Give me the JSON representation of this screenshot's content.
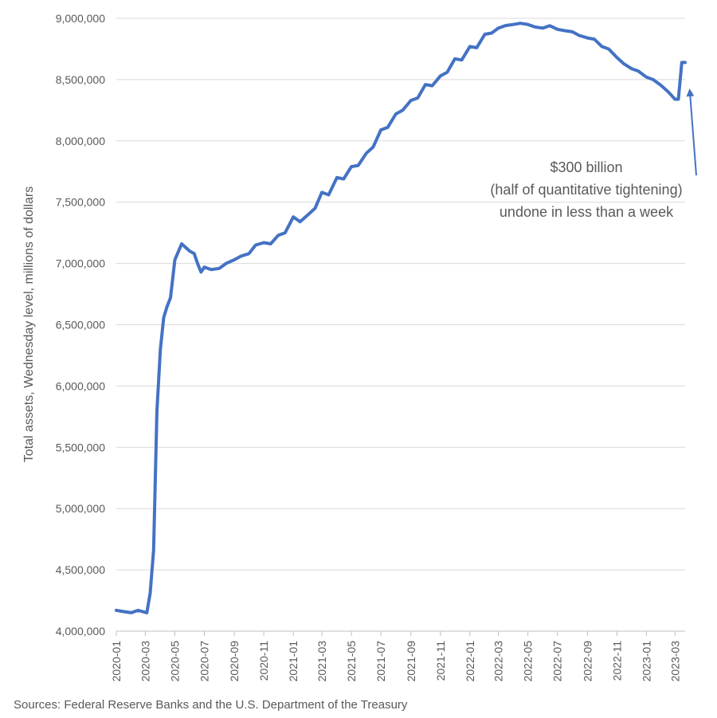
{
  "chart_data": {
    "type": "line",
    "title": "",
    "xlabel": "",
    "ylabel": "Total assets, Wednesday level, millions of dollars",
    "ylim": [
      4000000,
      9000000
    ],
    "y_ticks": [
      4000000,
      4500000,
      5000000,
      5500000,
      6000000,
      6500000,
      7000000,
      7500000,
      8000000,
      8500000,
      9000000
    ],
    "y_tick_labels": [
      "4,000,000",
      "4,500,000",
      "5,000,000",
      "5,500,000",
      "6,000,000",
      "6,500,000",
      "7,000,000",
      "7,500,000",
      "8,000,000",
      "8,500,000",
      "9,000,000"
    ],
    "x_range": [
      "2020-01-01",
      "2023-03-22"
    ],
    "x_tick_labels": [
      "2020-01",
      "2020-03",
      "2020-05",
      "2020-07",
      "2020-09",
      "2020-11",
      "2021-01",
      "2021-03",
      "2021-05",
      "2021-07",
      "2021-09",
      "2021-11",
      "2022-01",
      "2022-03",
      "2022-05",
      "2022-07",
      "2022-09",
      "2022-11",
      "2023-01",
      "2023-03"
    ],
    "grid": "horizontal",
    "series_color": "#4472C4",
    "series": [
      {
        "x": [
          "2020-01-01",
          "2020-01-15",
          "2020-02-01",
          "2020-02-15",
          "2020-03-04",
          "2020-03-11",
          "2020-03-18",
          "2020-03-25",
          "2020-04-01",
          "2020-04-08",
          "2020-04-15",
          "2020-04-22",
          "2020-05-01",
          "2020-05-15",
          "2020-06-01",
          "2020-06-10",
          "2020-06-17",
          "2020-06-24",
          "2020-07-01",
          "2020-07-15",
          "2020-08-01",
          "2020-08-15",
          "2020-09-01",
          "2020-09-15",
          "2020-10-01",
          "2020-10-15",
          "2020-11-01",
          "2020-11-15",
          "2020-12-01",
          "2020-12-15",
          "2021-01-01",
          "2021-01-15",
          "2021-02-01",
          "2021-02-15",
          "2021-03-01",
          "2021-03-15",
          "2021-04-01",
          "2021-04-15",
          "2021-05-01",
          "2021-05-15",
          "2021-06-01",
          "2021-06-15",
          "2021-07-01",
          "2021-07-15",
          "2021-08-01",
          "2021-08-15",
          "2021-09-01",
          "2021-09-15",
          "2021-10-01",
          "2021-10-15",
          "2021-11-01",
          "2021-11-15",
          "2021-12-01",
          "2021-12-15",
          "2022-01-01",
          "2022-01-15",
          "2022-02-01",
          "2022-02-15",
          "2022-03-01",
          "2022-03-15",
          "2022-04-01",
          "2022-04-15",
          "2022-05-01",
          "2022-05-15",
          "2022-06-01",
          "2022-06-15",
          "2022-07-01",
          "2022-07-15",
          "2022-08-01",
          "2022-08-15",
          "2022-09-01",
          "2022-09-15",
          "2022-10-01",
          "2022-10-15",
          "2022-11-01",
          "2022-11-15",
          "2022-12-01",
          "2022-12-15",
          "2023-01-01",
          "2023-01-15",
          "2023-02-01",
          "2023-02-15",
          "2023-03-01",
          "2023-03-08",
          "2023-03-15",
          "2023-03-22"
        ],
        "values": [
          4170000,
          4160000,
          4150000,
          4170000,
          4150000,
          4310000,
          4660000,
          5800000,
          6300000,
          6560000,
          6650000,
          6720000,
          7030000,
          7160000,
          7100000,
          7080000,
          7000000,
          6930000,
          6970000,
          6950000,
          6960000,
          7000000,
          7030000,
          7060000,
          7080000,
          7150000,
          7170000,
          7160000,
          7230000,
          7250000,
          7380000,
          7340000,
          7400000,
          7450000,
          7580000,
          7560000,
          7700000,
          7690000,
          7790000,
          7800000,
          7900000,
          7950000,
          8090000,
          8110000,
          8220000,
          8250000,
          8330000,
          8350000,
          8460000,
          8450000,
          8530000,
          8560000,
          8670000,
          8660000,
          8770000,
          8760000,
          8870000,
          8880000,
          8920000,
          8940000,
          8950000,
          8960000,
          8950000,
          8930000,
          8920000,
          8940000,
          8910000,
          8900000,
          8890000,
          8860000,
          8840000,
          8830000,
          8770000,
          8750000,
          8680000,
          8630000,
          8590000,
          8570000,
          8520000,
          8500000,
          8450000,
          8400000,
          8340000,
          8340000,
          8640000,
          8640000
        ]
      }
    ],
    "annotation": {
      "lines": [
        "$300 billion",
        "(half of quantitative tightening)",
        "undone in less than a week"
      ]
    }
  },
  "source": "Sources: Federal Reserve Banks and the U.S. Department of the Treasury"
}
